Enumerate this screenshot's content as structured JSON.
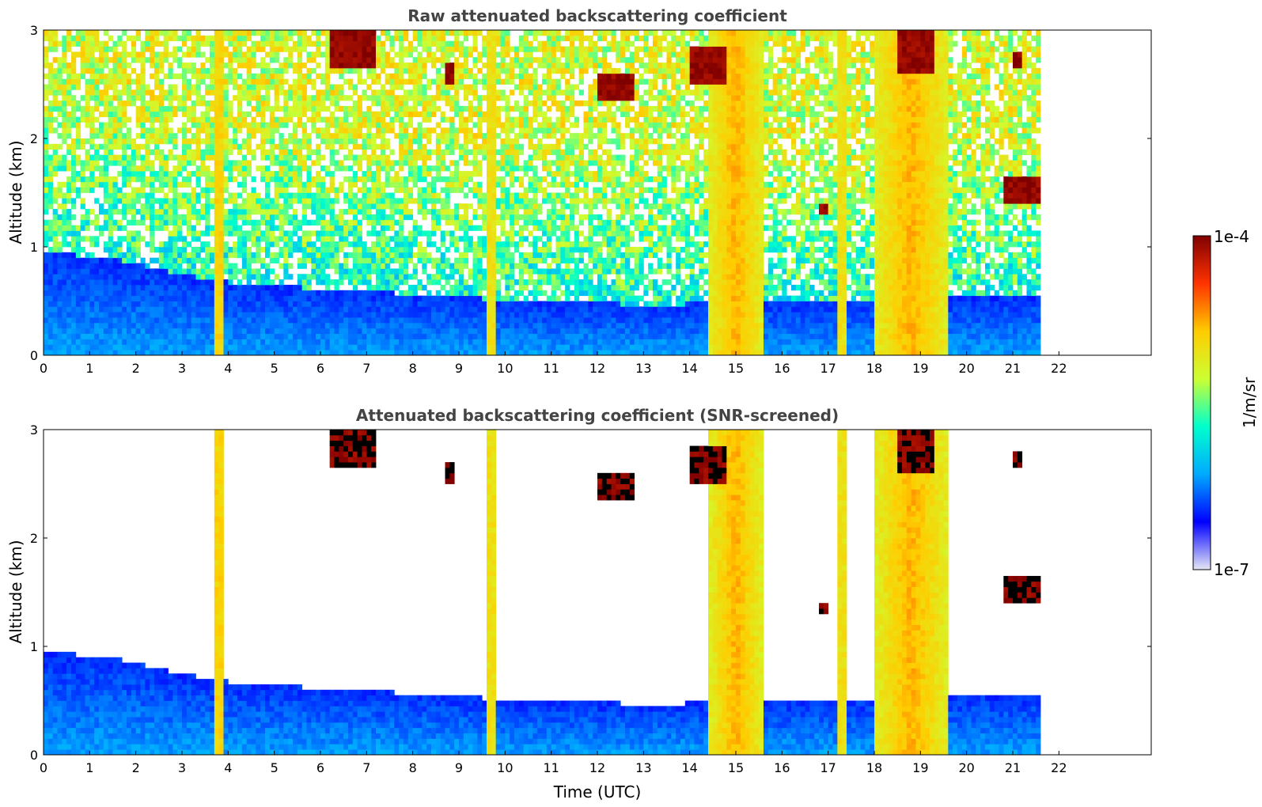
{
  "chart_data": [
    {
      "type": "heatmap",
      "title": "Raw attenuated backscattering coefficient",
      "xlabel": "",
      "ylabel": "Altitude (km)",
      "xlim": [
        0,
        24
      ],
      "ylim": [
        0,
        3
      ],
      "xticks": [
        "0",
        "1",
        "2",
        "3",
        "4",
        "5",
        "6",
        "7",
        "8",
        "9",
        "10",
        "11",
        "12",
        "13",
        "14",
        "15",
        "16",
        "17",
        "18",
        "19",
        "20",
        "21",
        "22"
      ],
      "yticks": [
        "0",
        "1",
        "2",
        "3"
      ],
      "data_extent_hours": [
        0,
        21.6
      ],
      "screened": false,
      "grid": false
    },
    {
      "type": "heatmap",
      "title": "Attenuated backscattering coefficient (SNR-screened)",
      "xlabel": "Time (UTC)",
      "ylabel": "Altitude (km)",
      "xlim": [
        0,
        24
      ],
      "ylim": [
        0,
        3
      ],
      "xticks": [
        "0",
        "1",
        "2",
        "3",
        "4",
        "5",
        "6",
        "7",
        "8",
        "9",
        "10",
        "11",
        "12",
        "13",
        "14",
        "15",
        "16",
        "17",
        "18",
        "19",
        "20",
        "21",
        "22"
      ],
      "yticks": [
        "0",
        "1",
        "2",
        "3"
      ],
      "data_extent_hours": [
        0,
        21.6
      ],
      "screened": true,
      "grid": false
    }
  ],
  "colorbar": {
    "label": "1/m/sr",
    "min_label": "1e-7",
    "max_label": "1e-4",
    "colormap": "jet",
    "colors": [
      "#e6e6f5",
      "#0000ff",
      "#00aaff",
      "#00ffcc",
      "#ccff33",
      "#ffcc00",
      "#ff3300",
      "#800000"
    ]
  },
  "features": {
    "boundary_layer_top_km": [
      0.95,
      0.9,
      0.75,
      0.65,
      0.62,
      0.58,
      0.55,
      0.5,
      0.48,
      0.47,
      0.48,
      0.5,
      0.5,
      0.52,
      0.55,
      0.55
    ],
    "plumes": [
      {
        "t": 3.8,
        "width": 0.25,
        "top_km": 3.0
      },
      {
        "t": 9.7,
        "width": 0.15,
        "top_km": 3.0
      },
      {
        "t": 15.0,
        "width": 1.2,
        "top_km": 3.0
      },
      {
        "t": 17.3,
        "width": 0.15,
        "top_km": 3.0
      },
      {
        "t": 18.8,
        "width": 1.6,
        "top_km": 3.0
      }
    ],
    "clouds": [
      {
        "t0": 6.2,
        "t1": 7.2,
        "z0": 2.65,
        "z1": 3.0
      },
      {
        "t0": 8.7,
        "t1": 8.9,
        "z0": 2.5,
        "z1": 2.7
      },
      {
        "t0": 12.0,
        "t1": 12.8,
        "z0": 2.35,
        "z1": 2.6
      },
      {
        "t0": 14.0,
        "t1": 14.8,
        "z0": 2.5,
        "z1": 2.85
      },
      {
        "t0": 18.5,
        "t1": 19.3,
        "z0": 2.6,
        "z1": 3.0
      },
      {
        "t0": 21.0,
        "t1": 21.2,
        "z0": 2.65,
        "z1": 2.8
      },
      {
        "t0": 20.8,
        "t1": 21.6,
        "z0": 1.4,
        "z1": 1.65
      },
      {
        "t0": 16.8,
        "t1": 17.0,
        "z0": 1.28,
        "z1": 1.38
      }
    ]
  }
}
